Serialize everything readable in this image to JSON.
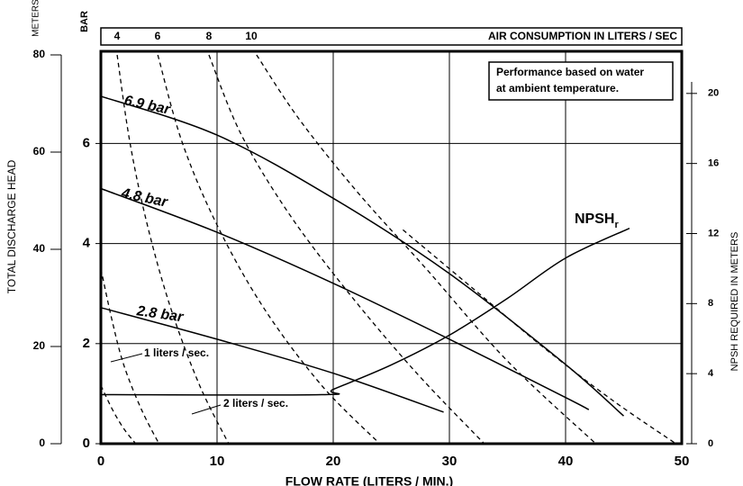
{
  "chart_data": {
    "type": "line",
    "axis_labels": {
      "meters": "METERS",
      "bar": "BAR",
      "left": "TOTAL DISCHARGE HEAD",
      "right": "NPSH REQUIRED IN METERS",
      "x": "FLOW RATE (LITERS / MIN.)",
      "top": "AIR CONSUMPTION IN LITERS / SEC"
    },
    "note": [
      "Performance based on water",
      "at ambient temperature."
    ],
    "xlim": [
      0,
      50
    ],
    "xticks": [
      0,
      10,
      20,
      30,
      40,
      50
    ],
    "ylim": [
      0,
      80
    ],
    "yticks": [
      0,
      20,
      40,
      60,
      80
    ],
    "bar_lim": [
      0,
      7.77
    ],
    "bar_ticks": [
      0,
      2,
      4,
      6
    ],
    "y2lim": [
      0,
      22.2
    ],
    "y2ticks": [
      0,
      4,
      8,
      12,
      16,
      20
    ],
    "top_ticks": [
      4,
      6,
      8,
      10
    ],
    "grid": true,
    "series": [
      {
        "name": "6.9 bar",
        "x": [
          0,
          10,
          20,
          30,
          40,
          45
        ],
        "values": [
          71.5,
          63.5,
          50.5,
          35,
          16.3,
          5.7
        ]
      },
      {
        "name": "4.8 bar",
        "x": [
          0,
          10,
          20,
          30,
          40,
          42
        ],
        "values": [
          52.5,
          43.5,
          33,
          21.5,
          9.5,
          7
        ]
      },
      {
        "name": "2.8 bar",
        "x": [
          0,
          10,
          20,
          29.5
        ],
        "values": [
          28,
          21.5,
          14.5,
          6.5
        ]
      },
      {
        "name": "NPSH",
        "subscript": "r",
        "axis": "y2",
        "x": [
          0,
          19,
          20,
          25,
          30,
          35,
          40,
          45.5
        ],
        "values": [
          2.8,
          2.8,
          3.1,
          4.5,
          6.2,
          8.3,
          10.6,
          12.3
        ]
      }
    ],
    "air_curves": [
      {
        "x": [
          0,
          1,
          2,
          3
        ],
        "values": [
          12,
          7,
          3,
          0
        ]
      },
      {
        "x": [
          0,
          1,
          2,
          3.5,
          5
        ],
        "values": [
          36,
          25,
          16,
          7,
          0
        ]
      },
      {
        "x": [
          1.4,
          2.5,
          4,
          6,
          8.5,
          11
        ],
        "values": [
          80,
          62,
          45,
          28,
          12,
          0
        ]
      },
      {
        "x": [
          4.9,
          7,
          10,
          14,
          19,
          24
        ],
        "values": [
          80,
          62,
          45,
          28,
          12,
          0
        ]
      },
      {
        "x": [
          9.3,
          12,
          16,
          21,
          27,
          33
        ],
        "values": [
          80,
          64,
          48,
          32,
          15,
          0
        ]
      },
      {
        "x": [
          13.4,
          17,
          22,
          28,
          35,
          42.6
        ],
        "values": [
          80,
          67,
          52,
          36,
          17,
          0
        ]
      },
      {
        "x": [
          26,
          32,
          38,
          44,
          49.5
        ],
        "values": [
          44,
          32,
          20,
          9,
          0
        ]
      }
    ],
    "curve_labels": [
      "1 liters / sec.",
      "2 liters / sec."
    ]
  }
}
